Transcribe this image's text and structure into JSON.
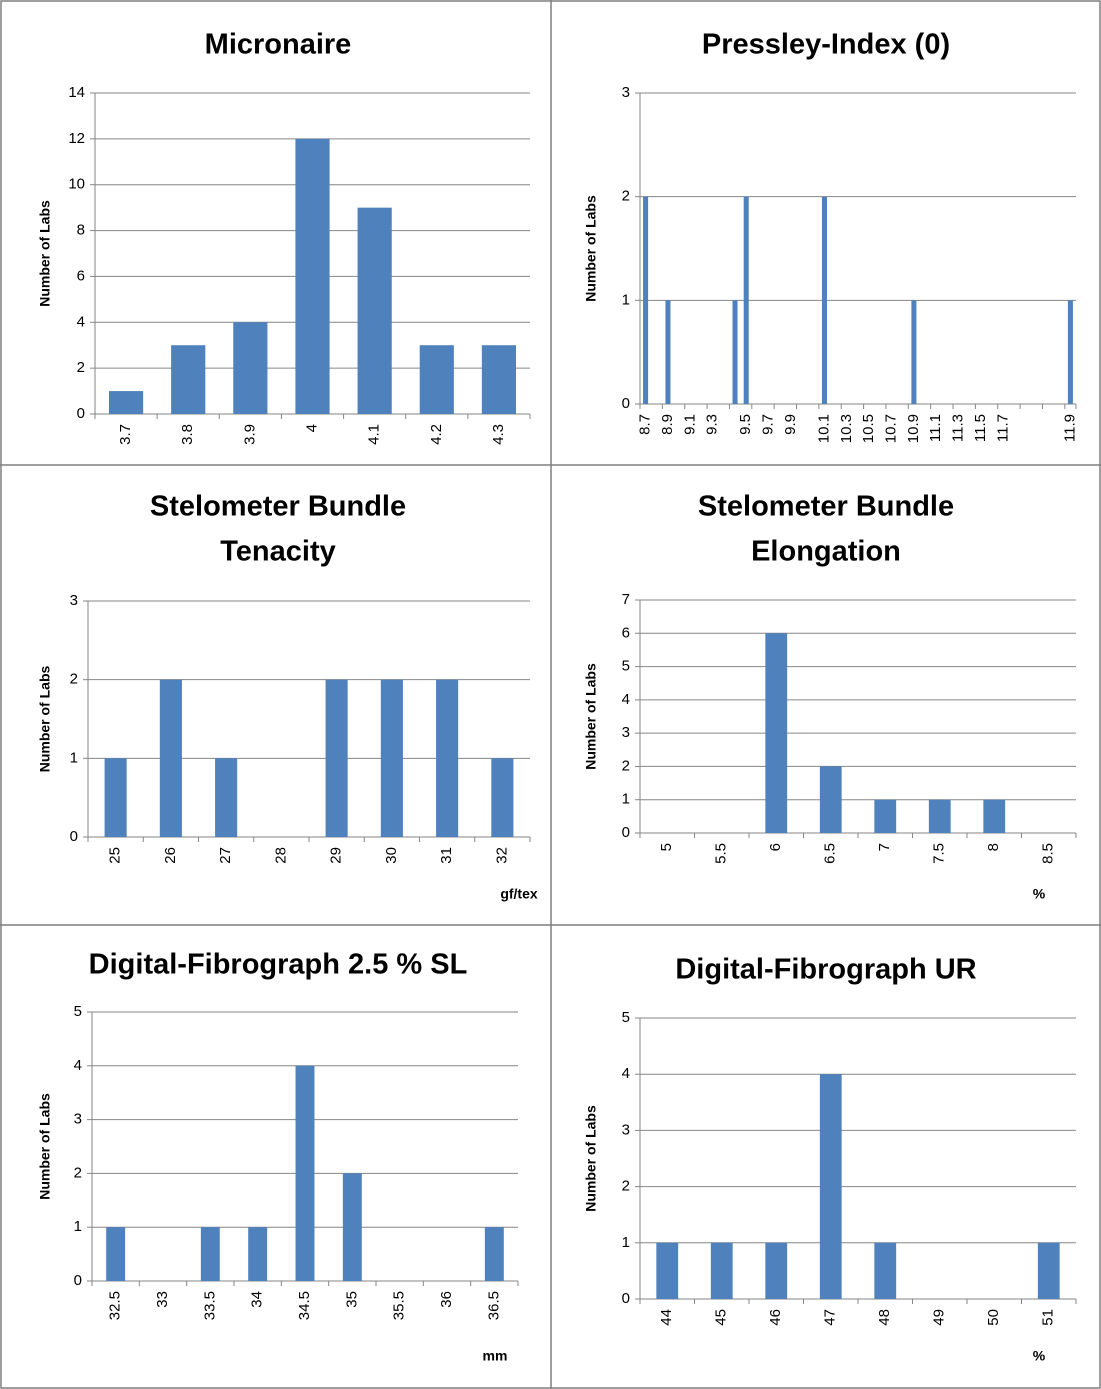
{
  "chart_data": [
    {
      "type": "bar",
      "title": [
        "Micronaire"
      ],
      "y_label": "Number of Labs",
      "color": "#4f81bd",
      "grid": true,
      "categories": [
        "3.7",
        "3.8",
        "3.9",
        "4",
        "4.1",
        "4.2",
        "4.3"
      ],
      "values": [
        1,
        3,
        4,
        12,
        9,
        3,
        3
      ],
      "ylim": [
        0,
        14
      ],
      "yticks": [
        0,
        2,
        4,
        6,
        8,
        10,
        12,
        14
      ]
    },
    {
      "type": "bar",
      "title": [
        "Pressley-Index (0)"
      ],
      "y_label": "Number of Labs",
      "color": "#4f81bd",
      "grid": true,
      "categories": [
        "8.7",
        null,
        "8.9",
        null,
        "9.1",
        null,
        "9.3",
        null,
        null,
        "9.5",
        null,
        "9.7",
        null,
        "9.9",
        null,
        null,
        "10.1",
        null,
        "10.3",
        null,
        "10.5",
        null,
        "10.7",
        null,
        "10.9",
        null,
        "11.1",
        null,
        "11.3",
        null,
        "11.5",
        null,
        "11.7",
        null,
        null,
        null,
        null,
        null,
        "11.9"
      ],
      "values": [
        2,
        0,
        1,
        0,
        0,
        0,
        0,
        0,
        1,
        2,
        0,
        0,
        0,
        0,
        0,
        0,
        2,
        0,
        0,
        0,
        0,
        0,
        0,
        0,
        1,
        0,
        0,
        0,
        0,
        0,
        0,
        0,
        0,
        0,
        0,
        0,
        0,
        0,
        1
      ],
      "ylim": [
        0,
        3
      ],
      "yticks": [
        0,
        1,
        2,
        3
      ]
    },
    {
      "type": "bar",
      "title": [
        "Stelometer Bundle",
        "Tenacity"
      ],
      "y_label": "Number of Labs",
      "x_label": "gf/tex",
      "color": "#4f81bd",
      "grid": true,
      "categories": [
        "25",
        "26",
        "27",
        "28",
        "29",
        "30",
        "31",
        "32"
      ],
      "values": [
        1,
        2,
        1,
        0,
        2,
        2,
        2,
        1
      ],
      "ylim": [
        0,
        3
      ],
      "yticks": [
        0,
        1,
        2,
        3
      ]
    },
    {
      "type": "bar",
      "title": [
        "Stelometer Bundle",
        "Elongation"
      ],
      "y_label": "Number of Labs",
      "x_label": "%",
      "color": "#4f81bd",
      "grid": true,
      "categories": [
        "5",
        "5.5",
        "6",
        "6.5",
        "7",
        "7.5",
        "8",
        "8.5"
      ],
      "values": [
        0,
        0,
        6,
        2,
        1,
        1,
        1,
        0
      ],
      "ylim": [
        0,
        7
      ],
      "yticks": [
        0,
        1,
        2,
        3,
        4,
        5,
        6,
        7
      ]
    },
    {
      "type": "bar",
      "title": [
        "Digital-Fibrograph 2.5 % SL"
      ],
      "y_label": "Number of Labs",
      "x_label": "mm",
      "color": "#4f81bd",
      "grid": true,
      "categories": [
        "32.5",
        "33",
        "33.5",
        "34",
        "34.5",
        "35",
        "35.5",
        "36",
        "36.5"
      ],
      "values": [
        1,
        0,
        1,
        1,
        4,
        2,
        0,
        0,
        1
      ],
      "ylim": [
        0,
        5
      ],
      "yticks": [
        0,
        1,
        2,
        3,
        4,
        5
      ]
    },
    {
      "type": "bar",
      "title": [
        "Digital-Fibrograph UR"
      ],
      "y_label": "Number of Labs",
      "x_label": "%",
      "color": "#4f81bd",
      "grid": true,
      "categories": [
        "44",
        "45",
        "46",
        "47",
        "48",
        "49",
        "50",
        "51"
      ],
      "values": [
        1,
        1,
        1,
        4,
        1,
        0,
        0,
        1
      ],
      "ylim": [
        0,
        5
      ],
      "yticks": [
        0,
        1,
        2,
        3,
        4,
        5
      ]
    }
  ]
}
